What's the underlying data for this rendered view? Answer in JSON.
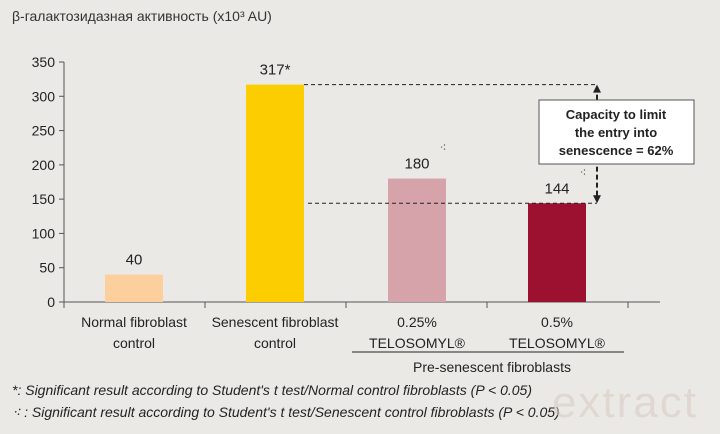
{
  "chart_data": {
    "type": "bar",
    "title": "β-галактозидазная активность  (x10³ AU)",
    "categories": [
      [
        "Normal fibroblast",
        "control"
      ],
      [
        "Senescent fibroblast",
        "control"
      ],
      [
        "0.25%",
        "TELOSOMYL®"
      ],
      [
        "0.5%",
        "TELOSOMYL®"
      ]
    ],
    "values": [
      40,
      317,
      180,
      144
    ],
    "value_labels": [
      "40",
      "317*",
      "180",
      "144"
    ],
    "bar_colors": [
      "#fccf9c",
      "#fccd00",
      "#d6a3ab",
      "#9c1030"
    ],
    "significance_markers": [
      null,
      null,
      "⁖",
      "⁖"
    ],
    "ylim": [
      0,
      350
    ],
    "yticks": [
      0,
      50,
      100,
      150,
      200,
      250,
      300,
      350
    ],
    "group_label": "Pre-senescent fibroblasts",
    "annotation": [
      "Capacity to limit",
      "the entry into",
      "senescence = 62%"
    ],
    "grid": false
  },
  "footnotes": [
    "*: Significant result according to Student's t test/Normal control fibroblasts (P < 0.05)",
    "⁖ : Significant result according to Student's t test/Senescent control fibroblasts (P < 0.05)"
  ],
  "watermark": "extract"
}
